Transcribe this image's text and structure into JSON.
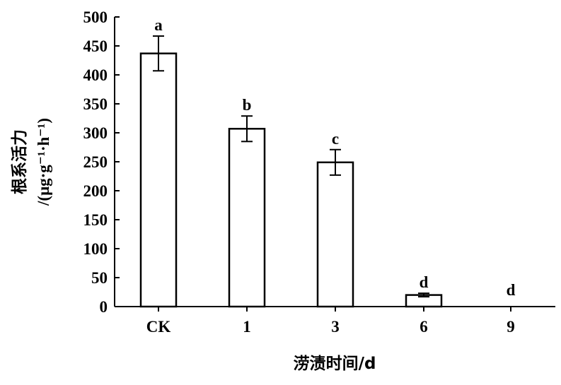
{
  "chart_data": {
    "type": "bar",
    "categories": [
      "CK",
      "1",
      "3",
      "6",
      "9"
    ],
    "values": [
      437,
      307,
      249,
      20,
      0
    ],
    "errors": [
      30,
      22,
      22,
      3,
      0
    ],
    "significance_letters": [
      "a",
      "b",
      "c",
      "d",
      "d"
    ],
    "xlabel": "涝渍时间/d",
    "ylabel_line1": "根系活力",
    "ylabel_line2": "/(μg·g⁻¹·h⁻¹)",
    "ylim": [
      0,
      500
    ],
    "yticks": [
      "0",
      "50",
      "100",
      "150",
      "200",
      "250",
      "300",
      "350",
      "400",
      "450",
      "500"
    ],
    "grid": false,
    "bar_fill": "#ffffff",
    "bar_stroke": "#000000"
  }
}
